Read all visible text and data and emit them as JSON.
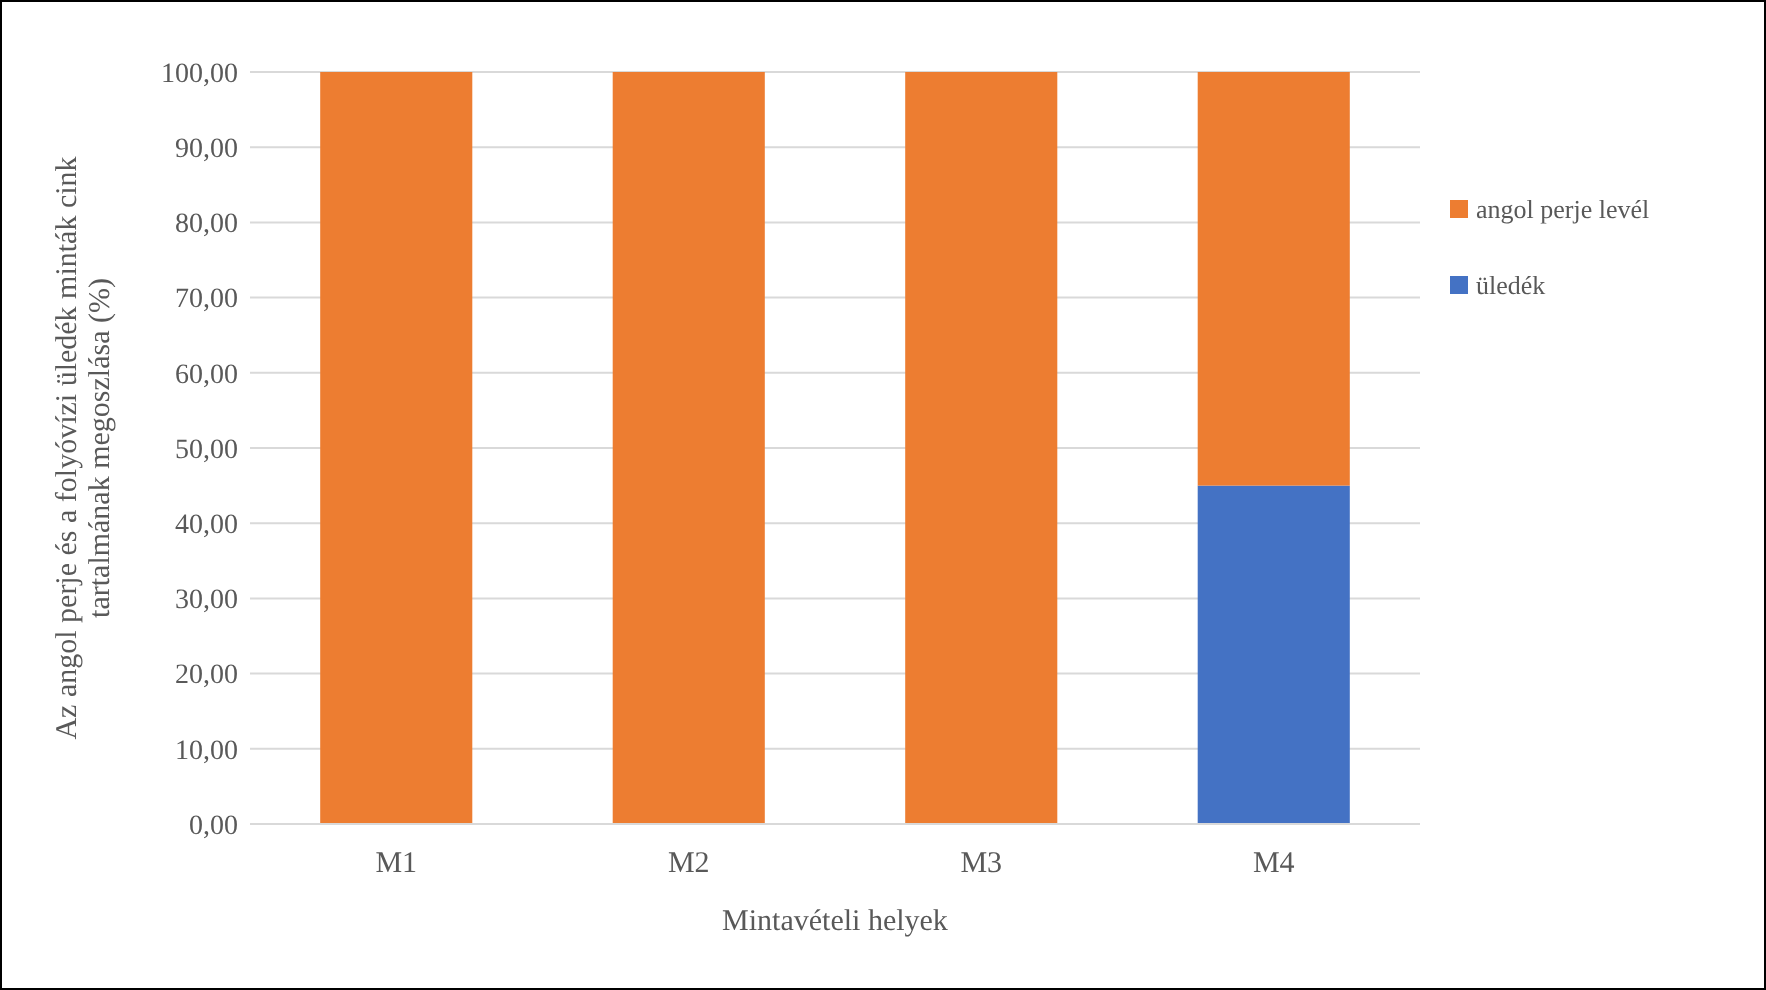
{
  "chart_data": {
    "type": "bar",
    "stacked": true,
    "categories": [
      "M1",
      "M2",
      "M3",
      "M4"
    ],
    "series": [
      {
        "name": "üledék",
        "color": "#4472c4",
        "values": [
          0,
          0,
          0,
          45
        ]
      },
      {
        "name": "angol perje levél",
        "color": "#ed7d31",
        "values": [
          100,
          100,
          100,
          55
        ]
      }
    ],
    "xlabel": "Mintavételi helyek",
    "ylabel": "Az angol perje és a folyóvízi üledék minták cink tartalmának megoszlása (%)",
    "ylim": [
      0,
      100
    ],
    "yticks": [
      {
        "value": 0,
        "label": "0,00"
      },
      {
        "value": 10,
        "label": "10,00"
      },
      {
        "value": 20,
        "label": "20,00"
      },
      {
        "value": 30,
        "label": "30,00"
      },
      {
        "value": 40,
        "label": "40,00"
      },
      {
        "value": 50,
        "label": "50,00"
      },
      {
        "value": 60,
        "label": "60,00"
      },
      {
        "value": 70,
        "label": "70,00"
      },
      {
        "value": 80,
        "label": "80,00"
      },
      {
        "value": 90,
        "label": "90,00"
      },
      {
        "value": 100,
        "label": "100,00"
      }
    ],
    "grid": "y",
    "legend": "right"
  }
}
